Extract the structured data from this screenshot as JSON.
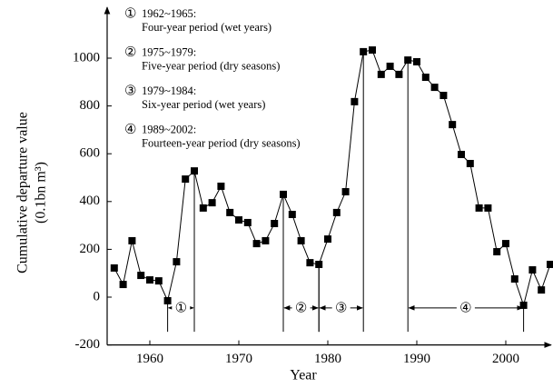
{
  "chart_data": {
    "type": "line",
    "x_label": "Year",
    "y_label": [
      "Cumulative departure value",
      "(0.1bn m³)"
    ],
    "x": [
      1956,
      1957,
      1958,
      1959,
      1960,
      1961,
      1962,
      1963,
      1964,
      1965,
      1966,
      1967,
      1968,
      1969,
      1970,
      1971,
      1972,
      1973,
      1974,
      1975,
      1976,
      1977,
      1978,
      1979,
      1980,
      1981,
      1982,
      1983,
      1984,
      1985,
      1986,
      1987,
      1988,
      1989,
      1990,
      1991,
      1992,
      1993,
      1994,
      1995,
      1996,
      1997,
      1998,
      1999,
      2000,
      2001,
      2002,
      2003,
      2004,
      2005
    ],
    "series": [
      {
        "name": "Cumulative departure",
        "color": "#000000",
        "values": [
          122,
          53,
          236,
          91,
          72,
          68,
          -15,
          148,
          494,
          528,
          373,
          395,
          464,
          354,
          323,
          312,
          224,
          236,
          308,
          430,
          346,
          236,
          144,
          137,
          243,
          354,
          441,
          818,
          1027,
          1034,
          932,
          966,
          932,
          992,
          985,
          920,
          878,
          844,
          722,
          597,
          559,
          373,
          373,
          190,
          224,
          76,
          -34,
          114,
          30,
          137
        ]
      }
    ],
    "xlim": [
      1955,
      2005
    ],
    "xticks": [
      1960,
      1970,
      1980,
      1990,
      2000
    ],
    "ylim": [
      -200,
      1100
    ],
    "yticks": [
      -200,
      0,
      200,
      400,
      600,
      800,
      1000
    ],
    "periods": [
      {
        "label": "①",
        "start": 1962,
        "end": 1965
      },
      {
        "label": "②",
        "start": 1975,
        "end": 1979
      },
      {
        "label": "③",
        "start": 1979,
        "end": 1984
      },
      {
        "label": "④",
        "start": 1989,
        "end": 2002
      }
    ],
    "annotations": [
      {
        "number": "①",
        "title": "1962~1965:",
        "text": "Four-year period (wet years)"
      },
      {
        "number": "②",
        "title": "1975~1979:",
        "text": "Five-year period (dry seasons)"
      },
      {
        "number": "③",
        "title": "1979~1984:",
        "text": "Six-year period (wet years)"
      },
      {
        "number": "④",
        "title": "1989~2002:",
        "text": "Fourteen-year period (dry seasons)"
      }
    ]
  }
}
